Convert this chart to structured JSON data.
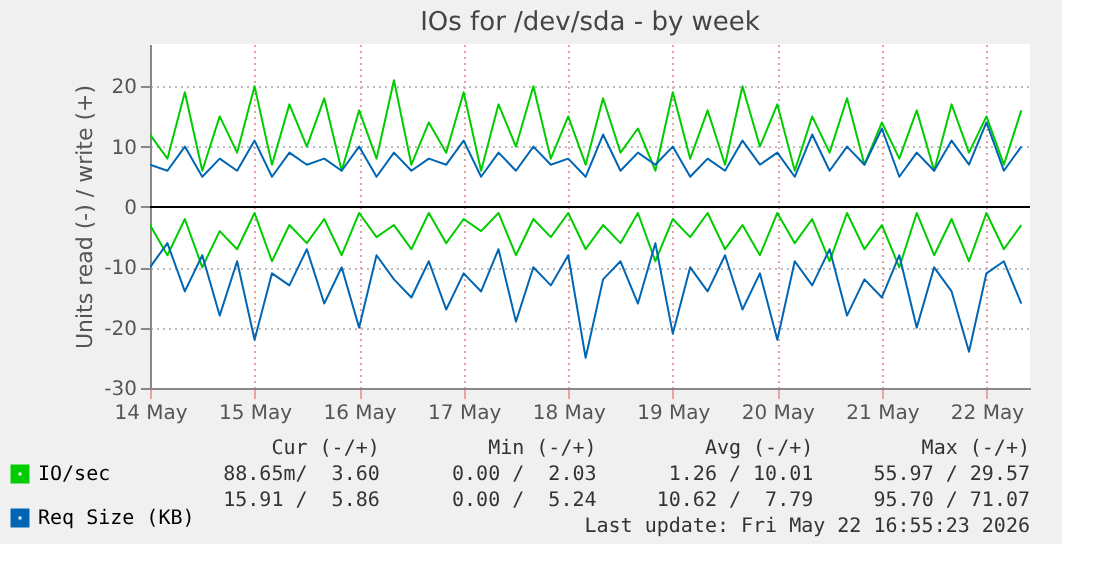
{
  "chart_data": {
    "type": "line",
    "title": "IOs for /dev/sda - by week",
    "ylabel": "Units read (-) / write (+)",
    "x": [
      "2026-05-14T00:00",
      "2026-05-14T04:00",
      "2026-05-14T08:00",
      "2026-05-14T12:00",
      "2026-05-14T16:00",
      "2026-05-14T20:00",
      "2026-05-15T00:00",
      "2026-05-15T04:00",
      "2026-05-15T08:00",
      "2026-05-15T12:00",
      "2026-05-15T16:00",
      "2026-05-15T20:00",
      "2026-05-16T00:00",
      "2026-05-16T04:00",
      "2026-05-16T08:00",
      "2026-05-16T12:00",
      "2026-05-16T16:00",
      "2026-05-16T20:00",
      "2026-05-17T00:00",
      "2026-05-17T04:00",
      "2026-05-17T08:00",
      "2026-05-17T12:00",
      "2026-05-17T16:00",
      "2026-05-17T20:00",
      "2026-05-18T00:00",
      "2026-05-18T04:00",
      "2026-05-18T08:00",
      "2026-05-18T12:00",
      "2026-05-18T16:00",
      "2026-05-18T20:00",
      "2026-05-19T00:00",
      "2026-05-19T04:00",
      "2026-05-19T08:00",
      "2026-05-19T12:00",
      "2026-05-19T16:00",
      "2026-05-19T20:00",
      "2026-05-20T00:00",
      "2026-05-20T04:00",
      "2026-05-20T08:00",
      "2026-05-20T12:00",
      "2026-05-20T16:00",
      "2026-05-20T20:00",
      "2026-05-21T00:00",
      "2026-05-21T04:00",
      "2026-05-21T08:00",
      "2026-05-21T12:00",
      "2026-05-21T16:00",
      "2026-05-21T20:00",
      "2026-05-22T00:00",
      "2026-05-22T04:00",
      "2026-05-22T08:00"
    ],
    "series": [
      {
        "name": "IO/sec",
        "color": "#00cc00",
        "values": [
          12,
          8,
          19,
          6,
          15,
          9,
          20,
          7,
          17,
          10,
          18,
          6,
          16,
          8,
          21,
          7,
          14,
          9,
          19,
          6,
          17,
          10,
          20,
          8,
          15,
          7,
          18,
          9,
          13,
          6,
          19,
          8,
          16,
          7,
          20,
          10,
          17,
          6,
          15,
          9,
          18,
          7,
          14,
          8,
          16,
          6,
          17,
          9,
          15,
          7,
          16
        ]
      },
      {
        "color": "#00cc00",
        "values": [
          -3,
          -8,
          -2,
          -10,
          -4,
          -7,
          -1,
          -9,
          -3,
          -6,
          -2,
          -8,
          -1,
          -5,
          -3,
          -7,
          -1,
          -6,
          -2,
          -4,
          -1,
          -8,
          -2,
          -5,
          -1,
          -7,
          -3,
          -6,
          -1,
          -9,
          -2,
          -5,
          -1,
          -7,
          -3,
          -8,
          -1,
          -6,
          -2,
          -9,
          -1,
          -7,
          -3,
          -10,
          -1,
          -8,
          -2,
          -9,
          -1,
          -7,
          -3
        ]
      },
      {
        "name": "Req Size (KB)",
        "color": "#0066b3",
        "values": [
          7,
          6,
          10,
          5,
          8,
          6,
          11,
          5,
          9,
          7,
          8,
          6,
          10,
          5,
          9,
          6,
          8,
          7,
          11,
          5,
          9,
          6,
          10,
          7,
          8,
          5,
          12,
          6,
          9,
          7,
          10,
          5,
          8,
          6,
          11,
          7,
          9,
          5,
          12,
          6,
          10,
          7,
          13,
          5,
          9,
          6,
          11,
          7,
          14,
          6,
          10
        ]
      },
      {
        "color": "#0066b3",
        "values": [
          -10,
          -6,
          -14,
          -8,
          -18,
          -9,
          -22,
          -11,
          -13,
          -7,
          -16,
          -10,
          -20,
          -8,
          -12,
          -15,
          -9,
          -17,
          -11,
          -14,
          -7,
          -19,
          -10,
          -13,
          -8,
          -25,
          -12,
          -9,
          -16,
          -6,
          -21,
          -10,
          -14,
          -8,
          -17,
          -11,
          -22,
          -9,
          -13,
          -7,
          -18,
          -12,
          -15,
          -8,
          -20,
          -10,
          -14,
          -24,
          -11,
          -9,
          -16
        ]
      }
    ],
    "xlim": [
      "2026-05-14T00:00",
      "2026-05-22T10:00"
    ],
    "xticks": [
      {
        "value": "2026-05-14",
        "label": "14 May"
      },
      {
        "value": "2026-05-15",
        "label": "15 May"
      },
      {
        "value": "2026-05-16",
        "label": "16 May"
      },
      {
        "value": "2026-05-17",
        "label": "17 May"
      },
      {
        "value": "2026-05-18",
        "label": "18 May"
      },
      {
        "value": "2026-05-19",
        "label": "19 May"
      },
      {
        "value": "2026-05-20",
        "label": "20 May"
      },
      {
        "value": "2026-05-21",
        "label": "21 May"
      },
      {
        "value": "2026-05-22",
        "label": "22 May"
      }
    ],
    "ylim": [
      -30,
      27
    ],
    "yticks": [
      -30,
      -20,
      -10,
      0,
      10,
      20
    ],
    "grid": true,
    "legend": "bottom left",
    "ref_lines": [
      {
        "axis": "y",
        "value": 0,
        "color": "#000000"
      }
    ],
    "annotations": [
      "Cur (-/+)         Min (-/+)         Avg (-/+)         Max (-/+)",
      "88.65m/  3.60      0.00 /  2.03      1.26 / 10.01     55.97 / 29.57",
      "15.91 /  5.86      0.00 /  5.24     10.62 /  7.79     95.70 / 71.07",
      "Last update: Fri May 22 16:55:23 2026"
    ]
  }
}
